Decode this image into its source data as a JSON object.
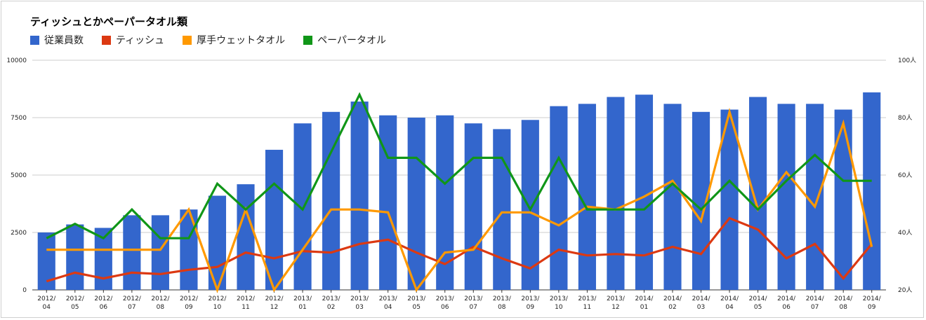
{
  "chart_data": {
    "type": "bar",
    "title": "ティッシュとかペーパータオル類",
    "legend_position": "top-left",
    "grid": true,
    "categories": [
      "2012/04",
      "2012/05",
      "2012/06",
      "2012/07",
      "2012/08",
      "2012/09",
      "2012/10",
      "2012/11",
      "2012/12",
      "2013/01",
      "2013/02",
      "2013/03",
      "2013/04",
      "2013/05",
      "2013/06",
      "2013/07",
      "2013/08",
      "2013/09",
      "2013/10",
      "2013/11",
      "2013/12",
      "2014/01",
      "2014/02",
      "2014/03",
      "2014/04",
      "2014/05",
      "2014/06",
      "2014/07",
      "2014/08",
      "2014/09"
    ],
    "y_left": {
      "min": 0,
      "max": 10000,
      "ticks": [
        "0",
        "2500",
        "5000",
        "7500",
        "10000"
      ]
    },
    "y_right": {
      "min": 20,
      "max": 100,
      "ticks": [
        "20人",
        "40人",
        "60人",
        "80人",
        "100人"
      ]
    },
    "series": [
      {
        "name": "従業員数",
        "kind": "bar",
        "axis": "left",
        "color": "#3366cc",
        "values": [
          2500,
          2850,
          2700,
          3250,
          3250,
          3500,
          4100,
          4600,
          6100,
          7250,
          7750,
          8200,
          7600,
          7500,
          7600,
          7250,
          7000,
          7400,
          8000,
          8100,
          8400,
          8500,
          8100,
          7750,
          7850,
          8400,
          8100,
          8100,
          7850,
          8600
        ]
      },
      {
        "name": "ティッシュ",
        "kind": "line",
        "axis": "right",
        "color": "#dc3912",
        "values": [
          23,
          26,
          24,
          26,
          25.5,
          27,
          28,
          33,
          31,
          33.5,
          33,
          36,
          37.5,
          33,
          29,
          35,
          31,
          27.5,
          34,
          32,
          32.5,
          32,
          35,
          32.5,
          45,
          41,
          31,
          36,
          24,
          36
        ]
      },
      {
        "name": "厚手ウェットタオル",
        "kind": "line",
        "axis": "right",
        "color": "#ff9900",
        "values": [
          34,
          34,
          34,
          34,
          34,
          48,
          20,
          48,
          20,
          34,
          48,
          48,
          47,
          20,
          33,
          34,
          47,
          47,
          42.5,
          49,
          48,
          52.5,
          58,
          44,
          82,
          48,
          61,
          49,
          78,
          35
        ]
      },
      {
        "name": "ペーパータオル",
        "kind": "line",
        "axis": "right",
        "color": "#109618",
        "values": [
          38,
          43,
          38,
          48,
          38,
          38,
          57,
          48,
          57,
          48,
          68,
          88,
          66,
          66,
          57,
          66,
          66,
          48,
          66,
          48,
          48,
          48,
          57,
          48,
          58,
          48,
          58,
          67,
          58,
          58
        ]
      }
    ]
  }
}
